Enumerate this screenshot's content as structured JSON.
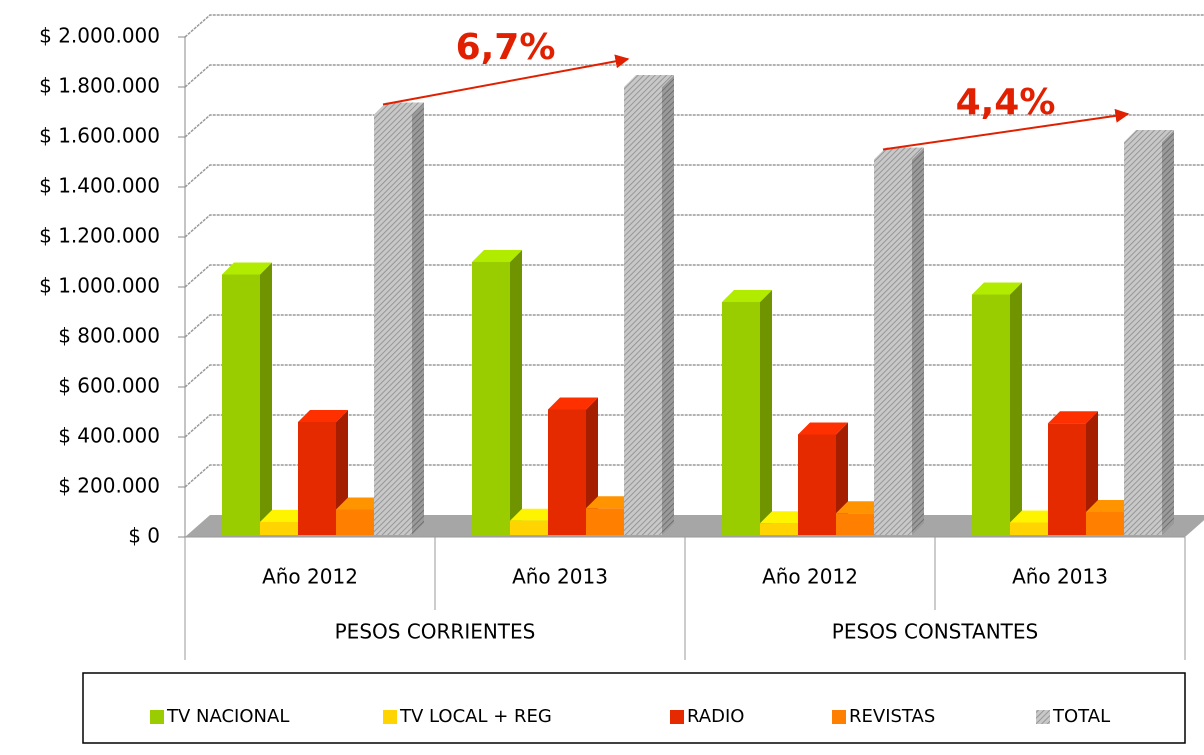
{
  "chart_data": {
    "type": "bar3d",
    "categories": [
      "Año 2012",
      "Año 2013",
      "Año 2012",
      "Año 2013"
    ],
    "groups": [
      "PESOS CORRIENTES",
      "PESOS CONSTANTES"
    ],
    "series": [
      {
        "name": "TV NACIONAL",
        "color": "#9acd00",
        "values": [
          1050000,
          1100000,
          940000,
          970000
        ]
      },
      {
        "name": "TV LOCAL + REG",
        "color": "#ffd400",
        "values": [
          60000,
          65000,
          55000,
          58000
        ]
      },
      {
        "name": "RADIO",
        "color": "#e52a00",
        "values": [
          460000,
          510000,
          410000,
          455000
        ]
      },
      {
        "name": "REVISTAS",
        "color": "#ff8000",
        "values": [
          110000,
          115000,
          95000,
          100000
        ]
      },
      {
        "name": "TOTAL",
        "color": "#bdbdbd",
        "hatch": true,
        "values": [
          1690000,
          1800000,
          1510000,
          1580000
        ]
      }
    ],
    "annotations": [
      "6,7%",
      "4,4%"
    ],
    "ylim": [
      0,
      2000000
    ],
    "yticks": [
      {
        "value": 0,
        "label": "$ 0"
      },
      {
        "value": 200000,
        "label": "$ 200.000"
      },
      {
        "value": 400000,
        "label": "$ 400.000"
      },
      {
        "value": 600000,
        "label": "$ 600.000"
      },
      {
        "value": 800000,
        "label": "$ 800.000"
      },
      {
        "value": 1000000,
        "label": "$ 1.000.000"
      },
      {
        "value": 1200000,
        "label": "$ 1.200.000"
      },
      {
        "value": 1400000,
        "label": "$ 1.400.000"
      },
      {
        "value": 1600000,
        "label": "$ 1.600.000"
      },
      {
        "value": 1800000,
        "label": "$ 1.800.000"
      },
      {
        "value": 2000000,
        "label": "$ 2.000.000"
      }
    ],
    "grid": true,
    "legend": "bottom"
  }
}
